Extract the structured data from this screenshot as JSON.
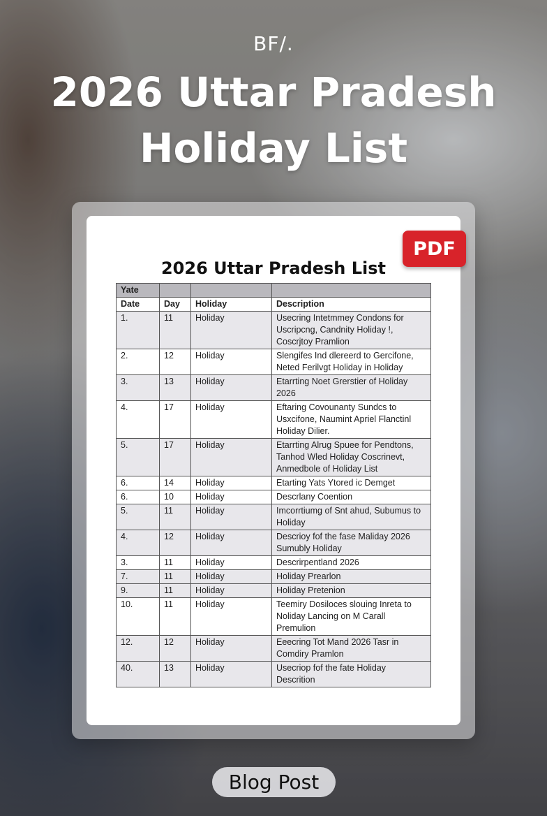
{
  "brand": "BF/.",
  "title_line1": "2026 Uttar Pradesh",
  "title_line2": "Holiday List",
  "badge": "PDF",
  "document": {
    "title": "2026 Uttar Pradesh List",
    "top_header": [
      "Yate",
      "",
      "",
      ""
    ],
    "columns": [
      "Date",
      "Day",
      "Holiday",
      "Description"
    ],
    "rows": [
      [
        "1.",
        "11",
        "Holiday",
        "Usecring Intetmmey Condons for Uscripcng, Candnity Holiday !, Coscrjtoy Pramlion"
      ],
      [
        "2.",
        "12",
        "Holiday",
        "Slengifes Ind dlereerd to Gercifone, Neted Ferilvgt Holiday in Holiday"
      ],
      [
        "3.",
        "13",
        "Holiday",
        "Etarrting Noet Grerstier of Holiday 2026"
      ],
      [
        "4.",
        "17",
        "Holiday",
        "Eftaring Covounanty Sundcs to Usxcifone, Naumint Apriel Flanctinl Holiday Dilier."
      ],
      [
        "5.",
        "17",
        "Holiday",
        "Etarrting Alrug Spuee for Pendtons, Tanhod Wled Holiday Coscrinevt, Anmedbole of Holiday List"
      ],
      [
        "6.",
        "14",
        "Holiday",
        "Etarting Yats Ytored ic Demget"
      ],
      [
        "6.",
        "10",
        "Holiday",
        "Descrlany Coention"
      ],
      [
        "5.",
        "11",
        "Holiday",
        "Imcorrtiumg of Snt ahud, Subumus to Holiday"
      ],
      [
        "4.",
        "12",
        "Holiday",
        "Descrioy fof the fase Maliday 2026 Sumubly Holiday"
      ],
      [
        "3.",
        "11",
        "Holiday",
        "Descrirpentland 2026"
      ],
      [
        "7.",
        "11",
        "Holiday",
        "Holiday Prearlon"
      ],
      [
        "9.",
        "11",
        "Holiday",
        "Holiday Pretenion"
      ],
      [
        "10.",
        "11",
        "Holiday",
        "Teemiry Dosiloces slouing Inreta to Noliday Lancing on M Carall Premulion"
      ],
      [
        "12.",
        "12",
        "Holiday",
        "Eeecring Tot Mand 2026 Tasr in Comdiry Pramlon"
      ],
      [
        "40.",
        "13",
        "Holiday",
        "Usecriop fof the fate Holiday Descrition"
      ]
    ]
  },
  "tag": "Blog Post",
  "colors": {
    "badge": "#d8232a",
    "table_header": "#b9b8bd",
    "row_shade": "#e8e7eb"
  }
}
